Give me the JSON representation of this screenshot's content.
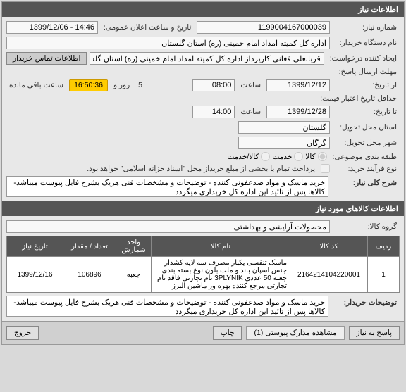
{
  "header_title": "اطلاعات نیاز",
  "need_number_label": "شماره نیاز:",
  "need_number": "1199004167000039",
  "announce_label": "تاریخ و ساعت اعلان عمومی:",
  "announce_value": "14:46 - 1399/12/06",
  "buyer_name_label": "نام دستگاه خریدار:",
  "buyer_name": "اداره کل کمیته امداد امام خمینی (ره) استان گلستان",
  "creator_label": "ایجاد کننده درخواست:",
  "creator": "قربانعلی فغانی کارپرداز اداره کل کمیته امداد امام خمینی (ره) استان گلستان",
  "contact_tab": "اطلاعات تماس خریدار",
  "deadline_send_label": "مهلت ارسال پاسخ:",
  "from_date_label": "از تاریخ:",
  "to_date_label": "تا تاریخ:",
  "deadline_date": "1399/12/12",
  "hour_label": "ساعت",
  "deadline_hour": "08:00",
  "countdown_time": "16:50:36",
  "days_label": "روز و",
  "days_value": "5",
  "remaining_label": "ساعت باقی مانده",
  "price_validity_label": "حداقل تاریخ اعتبار قیمت:",
  "price_date": "1399/12/28",
  "price_hour": "14:00",
  "delivery_province_label": "استان محل تحویل:",
  "delivery_province": "گلستان",
  "delivery_city_label": "شهر محل تحویل:",
  "delivery_city": "گرگان",
  "group_label": "طبقه بندی موضوعی:",
  "radio_goods": "کالا",
  "radio_service": "خدمت",
  "radio_both": "کالا/خدمت",
  "process_type_label": "نوع فرآیند خرید:",
  "payment_note": "پرداخت تمام یا بخشی از مبلغ خریداز محل \"اسناد خزانه اسلامی\" خواهد بود.",
  "title_label": "شرح کلی نیاز:",
  "title_text": "خرید ماسک و مواد ضدعفونی کننده - توضیحات و مشخصات فنی هریک بشرح فایل پیوست میباشد-  کالاها پس از تائید این اداره کل خریداری میگردد",
  "items_header": "اطلاعات کالاهای مورد نیاز",
  "group_kala_label": "گروه کالا:",
  "group_kala": "محصولات آرایشی و بهداشتی",
  "table": {
    "columns": [
      "ردیف",
      "کد کالا",
      "نام کالا",
      "واحد شمارش",
      "تعداد / مقدار",
      "تاریخ نیاز"
    ],
    "rows": [
      [
        "1",
        "2164214104220001",
        "ماسک تنفسی یکبار مصرف سه لایه کشدار جنس اسپان باند و ملت بلون نوع بسته بندی جعبه 50 عددی 3PLYNIK نام تجارتی فاقد نام تجارتی مرجع کننده بهره ور ماشین البرز",
        "جعبه",
        "106896",
        "1399/12/16"
      ]
    ]
  },
  "buyer_notes_label": "توضیحات خریدار:",
  "buyer_notes": "خرید ماسک و مواد ضدعفونی کننده - توضیحات و مشخصات فنی هریک بشرح فایل پیوست میباشد- کالاها پس از تائید این اداره کل خریداری میگردد",
  "btn_reply": "پاسخ به نیاز",
  "btn_attach": "مشاهده مدارک پیوستی (1)",
  "btn_print": "چاپ",
  "btn_close": "خروج"
}
